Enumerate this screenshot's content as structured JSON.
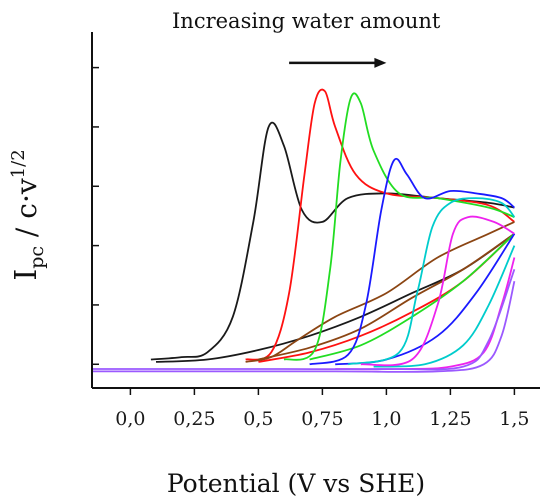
{
  "chart_data": {
    "type": "line",
    "title": "",
    "xlabel": "Potential (V vs SHE)",
    "ylabel": {
      "base": "I",
      "sub": "pc",
      "mid": " / c·v",
      "sup": "1/2"
    },
    "xlim": [
      -0.15,
      1.6
    ],
    "ylim": [
      -0.1,
      1.4
    ],
    "x_ticks": [
      0.0,
      0.25,
      0.5,
      0.75,
      1.0,
      1.25,
      1.5
    ],
    "x_tick_labels": [
      "0,0",
      "0,25",
      "0,5",
      "0,75",
      "1,0",
      "1,25",
      "1,5"
    ],
    "y_ticks": [
      0.0,
      0.25,
      0.5,
      0.75,
      1.0,
      1.25
    ],
    "y_tick_labels": [],
    "grid": false,
    "annotation": {
      "text": "Increasing water amount",
      "arrow_from_x": 0.62,
      "arrow_to_x": 1.0,
      "arrow_y": 1.27
    },
    "series": [
      {
        "color": "#1a1a1a",
        "forward": [
          [
            0.08,
            0.02
          ],
          [
            0.2,
            0.03
          ],
          [
            0.3,
            0.05
          ],
          [
            0.4,
            0.2
          ],
          [
            0.48,
            0.6
          ],
          [
            0.54,
            1.0
          ],
          [
            0.6,
            0.92
          ],
          [
            0.67,
            0.65
          ],
          [
            0.75,
            0.6
          ],
          [
            0.85,
            0.7
          ],
          [
            1.0,
            0.72
          ],
          [
            1.2,
            0.7
          ],
          [
            1.4,
            0.68
          ],
          [
            1.5,
            0.66
          ]
        ],
        "reverse": [
          [
            1.5,
            0.55
          ],
          [
            1.3,
            0.4
          ],
          [
            1.1,
            0.3
          ],
          [
            0.9,
            0.2
          ],
          [
            0.7,
            0.12
          ],
          [
            0.5,
            0.06
          ],
          [
            0.3,
            0.02
          ],
          [
            0.1,
            0.01
          ]
        ]
      },
      {
        "color": "#ff1111",
        "forward": [
          [
            0.45,
            0.02
          ],
          [
            0.55,
            0.05
          ],
          [
            0.62,
            0.3
          ],
          [
            0.68,
            0.8
          ],
          [
            0.72,
            1.1
          ],
          [
            0.76,
            1.15
          ],
          [
            0.8,
            1.0
          ],
          [
            0.88,
            0.8
          ],
          [
            1.0,
            0.72
          ],
          [
            1.2,
            0.7
          ],
          [
            1.4,
            0.67
          ],
          [
            1.5,
            0.6
          ]
        ],
        "reverse": [
          [
            1.5,
            0.55
          ],
          [
            1.3,
            0.35
          ],
          [
            1.1,
            0.22
          ],
          [
            0.9,
            0.12
          ],
          [
            0.7,
            0.05
          ],
          [
            0.5,
            0.01
          ]
        ]
      },
      {
        "color": "#8b4513",
        "forward": [
          [
            0.45,
            0.01
          ],
          [
            0.55,
            0.03
          ],
          [
            0.65,
            0.1
          ],
          [
            0.8,
            0.2
          ],
          [
            1.0,
            0.3
          ],
          [
            1.2,
            0.45
          ],
          [
            1.4,
            0.55
          ],
          [
            1.5,
            0.6
          ]
        ],
        "reverse": [
          [
            1.5,
            0.55
          ],
          [
            1.3,
            0.4
          ],
          [
            1.1,
            0.28
          ],
          [
            0.9,
            0.15
          ],
          [
            0.7,
            0.07
          ],
          [
            0.5,
            0.02
          ]
        ]
      },
      {
        "color": "#22dd22",
        "forward": [
          [
            0.6,
            0.02
          ],
          [
            0.72,
            0.06
          ],
          [
            0.78,
            0.4
          ],
          [
            0.82,
            0.85
          ],
          [
            0.86,
            1.12
          ],
          [
            0.9,
            1.1
          ],
          [
            0.95,
            0.9
          ],
          [
            1.05,
            0.72
          ],
          [
            1.2,
            0.7
          ],
          [
            1.4,
            0.66
          ],
          [
            1.5,
            0.62
          ]
        ],
        "reverse": [
          [
            1.5,
            0.55
          ],
          [
            1.3,
            0.35
          ],
          [
            1.1,
            0.2
          ],
          [
            0.9,
            0.08
          ],
          [
            0.7,
            0.02
          ]
        ]
      },
      {
        "color": "#1a1aff",
        "forward": [
          [
            0.7,
            0.0
          ],
          [
            0.85,
            0.04
          ],
          [
            0.92,
            0.25
          ],
          [
            0.98,
            0.65
          ],
          [
            1.03,
            0.86
          ],
          [
            1.08,
            0.8
          ],
          [
            1.15,
            0.7
          ],
          [
            1.25,
            0.73
          ],
          [
            1.35,
            0.72
          ],
          [
            1.45,
            0.7
          ],
          [
            1.5,
            0.66
          ]
        ],
        "reverse": [
          [
            1.5,
            0.55
          ],
          [
            1.35,
            0.3
          ],
          [
            1.2,
            0.12
          ],
          [
            1.0,
            0.02
          ],
          [
            0.8,
            0.0
          ]
        ]
      },
      {
        "color": "#00cccc",
        "forward": [
          [
            0.85,
            0.0
          ],
          [
            1.05,
            0.05
          ],
          [
            1.12,
            0.3
          ],
          [
            1.18,
            0.58
          ],
          [
            1.25,
            0.68
          ],
          [
            1.35,
            0.7
          ],
          [
            1.45,
            0.68
          ],
          [
            1.5,
            0.62
          ]
        ],
        "reverse": [
          [
            1.5,
            0.5
          ],
          [
            1.4,
            0.25
          ],
          [
            1.3,
            0.08
          ],
          [
            1.15,
            0.0
          ],
          [
            0.95,
            -0.01
          ]
        ]
      },
      {
        "color": "#ee22ee",
        "forward": [
          [
            0.9,
            0.0
          ],
          [
            1.1,
            0.02
          ],
          [
            1.2,
            0.25
          ],
          [
            1.26,
            0.55
          ],
          [
            1.32,
            0.62
          ],
          [
            1.42,
            0.6
          ],
          [
            1.5,
            0.55
          ]
        ],
        "reverse": [
          [
            1.5,
            0.45
          ],
          [
            1.45,
            0.25
          ],
          [
            1.38,
            0.05
          ],
          [
            1.25,
            -0.01
          ],
          [
            1.05,
            -0.02
          ],
          [
            0.8,
            -0.02
          ]
        ]
      },
      {
        "color": "#9b59ff",
        "forward": [
          [
            -0.15,
            -0.02
          ],
          [
            0.2,
            -0.02
          ],
          [
            0.6,
            -0.02
          ],
          [
            1.0,
            -0.02
          ],
          [
            1.3,
            -0.01
          ],
          [
            1.4,
            0.1
          ],
          [
            1.5,
            0.4
          ]
        ],
        "reverse": [
          [
            1.5,
            0.35
          ],
          [
            1.45,
            0.12
          ],
          [
            1.38,
            0.0
          ],
          [
            1.2,
            -0.03
          ],
          [
            0.8,
            -0.03
          ],
          [
            0.2,
            -0.03
          ],
          [
            -0.15,
            -0.03
          ]
        ]
      }
    ]
  }
}
